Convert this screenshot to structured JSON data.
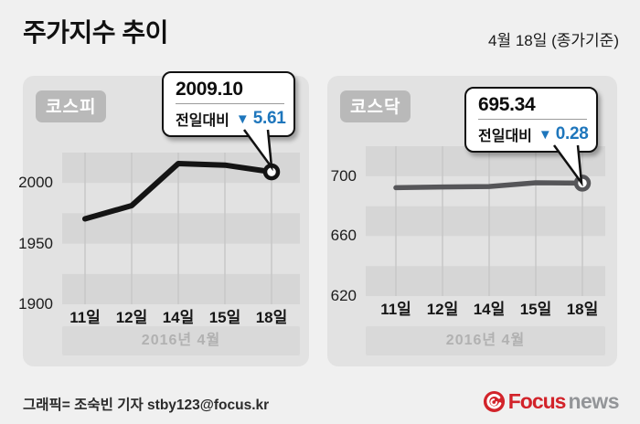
{
  "header": {
    "title": "주가지수 추이",
    "date_note": "4월 18일 (종가기준)"
  },
  "colors": {
    "accent_blue": "#1e76bc",
    "panel_bg": "#e2e2e2",
    "stripe_dark": "#d6d6d6",
    "grid_line": "#c7c7c7",
    "brand_red": "#d2232a",
    "brand_gray": "#939598"
  },
  "chart_data": [
    {
      "type": "line",
      "title": "코스피",
      "x": [
        "11일",
        "12일",
        "14일",
        "15일",
        "18일"
      ],
      "values": [
        1970.37,
        1981.32,
        2015.93,
        2014.71,
        2009.1
      ],
      "ylim": [
        1900,
        2025
      ],
      "yticks": [
        2000,
        1950,
        1900
      ],
      "band_step": 25,
      "period": "2016년  4월",
      "line_color": "#141414",
      "legend": "none",
      "grid": "vertical",
      "callout": {
        "value": "2009.10",
        "label": "전일대비",
        "arrow": "▼",
        "change": "5.61",
        "direction": "down"
      }
    },
    {
      "type": "line",
      "title": "코스닥",
      "x": [
        "11일",
        "12일",
        "14일",
        "15일",
        "18일"
      ],
      "values": [
        692.3,
        692.8,
        693.1,
        695.62,
        695.34
      ],
      "ylim": [
        620,
        720
      ],
      "yticks": [
        700,
        660,
        620
      ],
      "band_step": 20,
      "period": "2016년  4월",
      "line_color": "#565659",
      "legend": "none",
      "grid": "vertical",
      "callout": {
        "value": "695.34",
        "label": "전일대비",
        "arrow": "▼",
        "change": "0.28",
        "direction": "down"
      }
    }
  ],
  "footer": {
    "credit": "그래픽= 조숙빈 기자 stby123@focus.kr",
    "logo_focus": "Focus",
    "logo_news": "news"
  }
}
